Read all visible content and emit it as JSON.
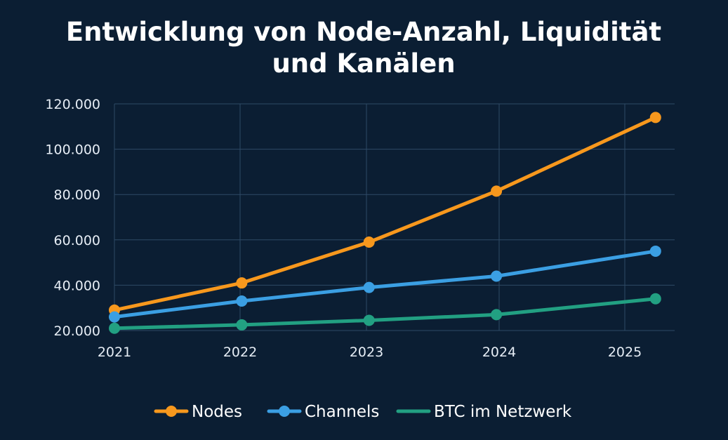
{
  "chart_data": {
    "type": "line",
    "title_lines": [
      "Entwicklung von Node-Anzahl, Liquidität",
      "und Kanälen"
    ],
    "xlabel": "",
    "ylabel": "",
    "x_tick_labels": [
      "2021",
      "2022",
      "2023",
      "2024",
      "2025"
    ],
    "y_tick_labels": [
      "20.000",
      "40.000",
      "60.000",
      "80.000",
      "100.000",
      "120.000"
    ],
    "y_ticks": [
      20000,
      40000,
      60000,
      80000,
      100000,
      120000
    ],
    "xlim": [
      2021,
      2025.4
    ],
    "ylim": [
      20000,
      120000
    ],
    "grid": true,
    "legend_position": "bottom-center",
    "series": [
      {
        "name": "Nodes",
        "color": "#f7981d",
        "x": [
          2021,
          2022,
          2023,
          2024,
          2025.25
        ],
        "values": [
          29000,
          41000,
          59000,
          81500,
          114000
        ]
      },
      {
        "name": "Channels",
        "color": "#3b9fe3",
        "x": [
          2021,
          2022,
          2023,
          2024,
          2025.25
        ],
        "values": [
          26000,
          33000,
          39000,
          44000,
          55000
        ]
      },
      {
        "name": "BTC im Netzwerk",
        "color": "#22a082",
        "x": [
          2021,
          2022,
          2023,
          2024,
          2025.25
        ],
        "values": [
          21000,
          22500,
          24500,
          27000,
          34000
        ]
      }
    ]
  }
}
